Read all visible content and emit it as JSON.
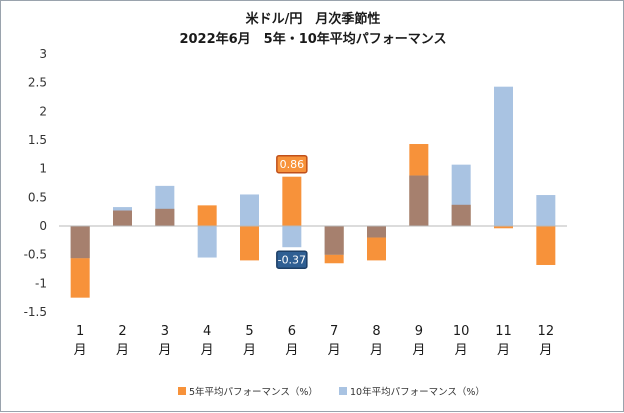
{
  "chart_data": {
    "type": "bar",
    "title": "米ドル/円　月次季節性",
    "subtitle": "2022年6月　5年・10年平均パフォーマンス",
    "categories": [
      {
        "num": "1",
        "suffix": "月"
      },
      {
        "num": "2",
        "suffix": "月"
      },
      {
        "num": "3",
        "suffix": "月"
      },
      {
        "num": "4",
        "suffix": "月"
      },
      {
        "num": "5",
        "suffix": "月"
      },
      {
        "num": "6",
        "suffix": "月"
      },
      {
        "num": "7",
        "suffix": "月"
      },
      {
        "num": "8",
        "suffix": "月"
      },
      {
        "num": "9",
        "suffix": "月"
      },
      {
        "num": "10",
        "suffix": "月"
      },
      {
        "num": "11",
        "suffix": "月"
      },
      {
        "num": "12",
        "suffix": "月"
      }
    ],
    "series": [
      {
        "name": "5年平均パフォーマンス（%）",
        "color": "#f7923a",
        "values": [
          -1.25,
          0.27,
          0.3,
          0.36,
          -0.6,
          0.86,
          -0.65,
          -0.6,
          1.43,
          0.37,
          -0.04,
          -0.68
        ]
      },
      {
        "name": "10年平均パフォーマンス（%）",
        "color": "#a9c3e2",
        "values": [
          -0.56,
          0.33,
          0.7,
          -0.55,
          0.55,
          -0.37,
          -0.5,
          -0.2,
          0.88,
          1.07,
          2.43,
          0.54
        ]
      }
    ],
    "overlap_color": "#a6806e",
    "ylim": [
      -1.5,
      3
    ],
    "yticks": [
      "-1.5",
      "-1",
      "-0.5",
      "0",
      "0.5",
      "1",
      "1.5",
      "2",
      "2.5",
      "3"
    ],
    "ytick_values": [
      -1.5,
      -1,
      -0.5,
      0,
      0.5,
      1,
      1.5,
      2,
      2.5,
      3
    ],
    "grid": false,
    "legend_position": "bottom",
    "annotations": [
      {
        "label": "0.86",
        "category_index": 5,
        "series_index": 0,
        "fill": "#f7923a",
        "border": "#c0501a"
      },
      {
        "label": "-0.37",
        "category_index": 5,
        "series_index": 1,
        "fill": "#2f5f93",
        "border": "#1d3f66"
      }
    ]
  }
}
